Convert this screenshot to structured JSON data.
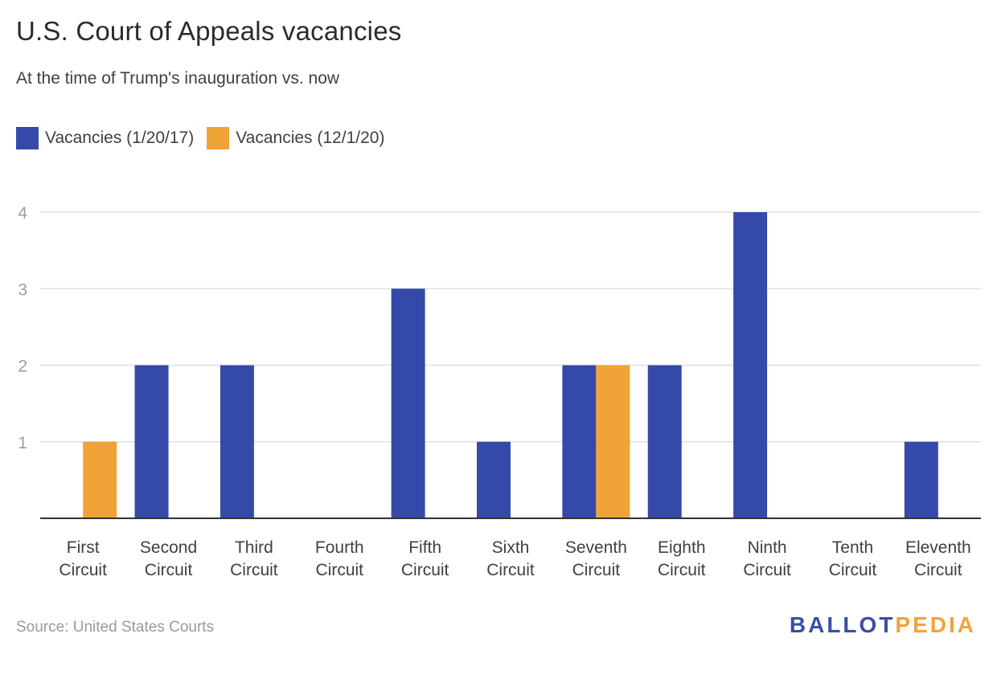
{
  "header": {
    "title": "U.S. Court of Appeals vacancies",
    "subtitle": "At the time of Trump's inauguration vs. now"
  },
  "footer": {
    "source": "Source: United States Courts",
    "logo_part1": "BALLOT",
    "logo_part2": "PEDIA"
  },
  "colors": {
    "series1": "#354aa8",
    "series2": "#f0a336",
    "grid": "#e0e0e0",
    "axis": "#333333",
    "tick": "#9e9e9e"
  },
  "chart_data": {
    "type": "bar",
    "title": "U.S. Court of Appeals vacancies",
    "subtitle": "At the time of Trump's inauguration vs. now",
    "categories": [
      [
        "First",
        "Circuit"
      ],
      [
        "Second",
        "Circuit"
      ],
      [
        "Third",
        "Circuit"
      ],
      [
        "Fourth",
        "Circuit"
      ],
      [
        "Fifth",
        "Circuit"
      ],
      [
        "Sixth",
        "Circuit"
      ],
      [
        "Seventh",
        "Circuit"
      ],
      [
        "Eighth",
        "Circuit"
      ],
      [
        "Ninth",
        "Circuit"
      ],
      [
        "Tenth",
        "Circuit"
      ],
      [
        "Eleventh",
        "Circuit"
      ]
    ],
    "series": [
      {
        "name": "Vacancies (1/20/17)",
        "color": "#354aa8",
        "values": [
          0,
          2,
          2,
          0,
          3,
          1,
          2,
          2,
          4,
          0,
          1
        ]
      },
      {
        "name": "Vacancies (12/1/20)",
        "color": "#f0a336",
        "values": [
          1,
          0,
          0,
          0,
          0,
          0,
          2,
          0,
          0,
          0,
          0
        ]
      }
    ],
    "yticks": [
      1,
      2,
      3,
      4
    ],
    "ylim": [
      0,
      4
    ],
    "grid": true,
    "legend": "top-left"
  }
}
